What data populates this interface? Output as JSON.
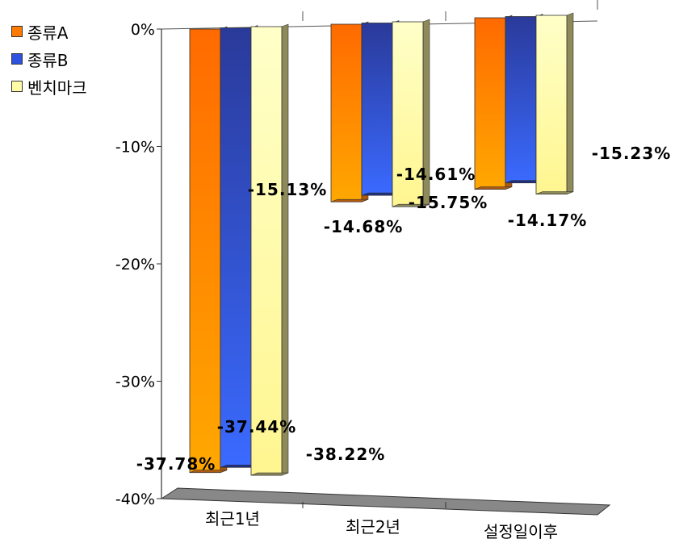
{
  "chart_data": {
    "type": "bar",
    "title": "",
    "xlabel": "",
    "ylabel": "",
    "categories": [
      "최근1년",
      "최근2년",
      "설정일이후"
    ],
    "series": [
      {
        "name": "종류A",
        "values": [
          -37.78,
          -15.13,
          -14.61
        ],
        "labels": [
          "-37.78%",
          "-15.13%",
          "-14.61%"
        ],
        "color": "#FF7A00"
      },
      {
        "name": "종류B",
        "values": [
          -37.44,
          -14.68,
          -14.17
        ],
        "labels": [
          "-37.44%",
          "-14.68%",
          "-14.17%"
        ],
        "color": "#2F52E0"
      },
      {
        "name": "벤치마크",
        "values": [
          -38.22,
          -15.75,
          -15.23
        ],
        "labels": [
          "-38.22%",
          "-15.75%",
          "-15.23%"
        ],
        "color": "#FFFCA8"
      }
    ],
    "ylim": [
      -40,
      0
    ],
    "yticks": [
      0,
      -10,
      -20,
      -30,
      -40
    ],
    "ytick_labels": [
      "0%",
      "-10%",
      "-20%",
      "-30%",
      "-40%"
    ],
    "legend_position": "top-left",
    "grid": false,
    "style": "3d-clustered-column"
  }
}
